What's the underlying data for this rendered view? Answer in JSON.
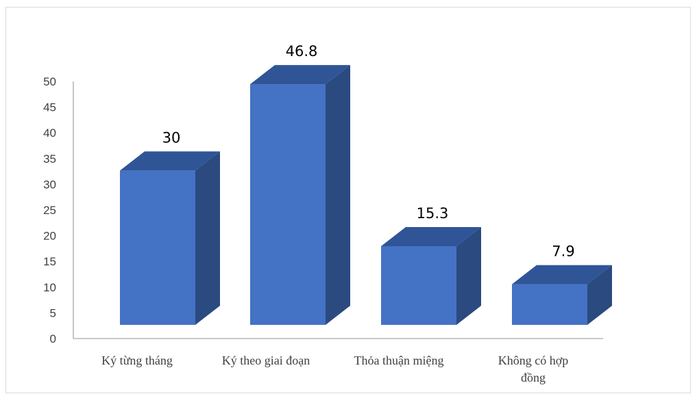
{
  "chart_data": {
    "type": "bar",
    "title": "",
    "xlabel": "",
    "ylabel": "",
    "categories": [
      "Ký từng tháng",
      "Ký theo giai đoạn",
      "Thỏa thuận miệng",
      "Không có hợp đồng"
    ],
    "values": [
      30,
      46.8,
      15.3,
      7.9
    ],
    "data_labels": [
      "30",
      "46.8",
      "15.3",
      "7.9"
    ],
    "ylim": [
      0,
      50
    ],
    "yticks": [
      0,
      5,
      10,
      15,
      20,
      25,
      30,
      35,
      40,
      45,
      50
    ],
    "grid": false,
    "legend": "none",
    "style": "3d-column",
    "colors": {
      "front": "#4472C4",
      "top": "#2F5597",
      "side": "#2A4A80",
      "axis": "#A6A6A6"
    }
  }
}
